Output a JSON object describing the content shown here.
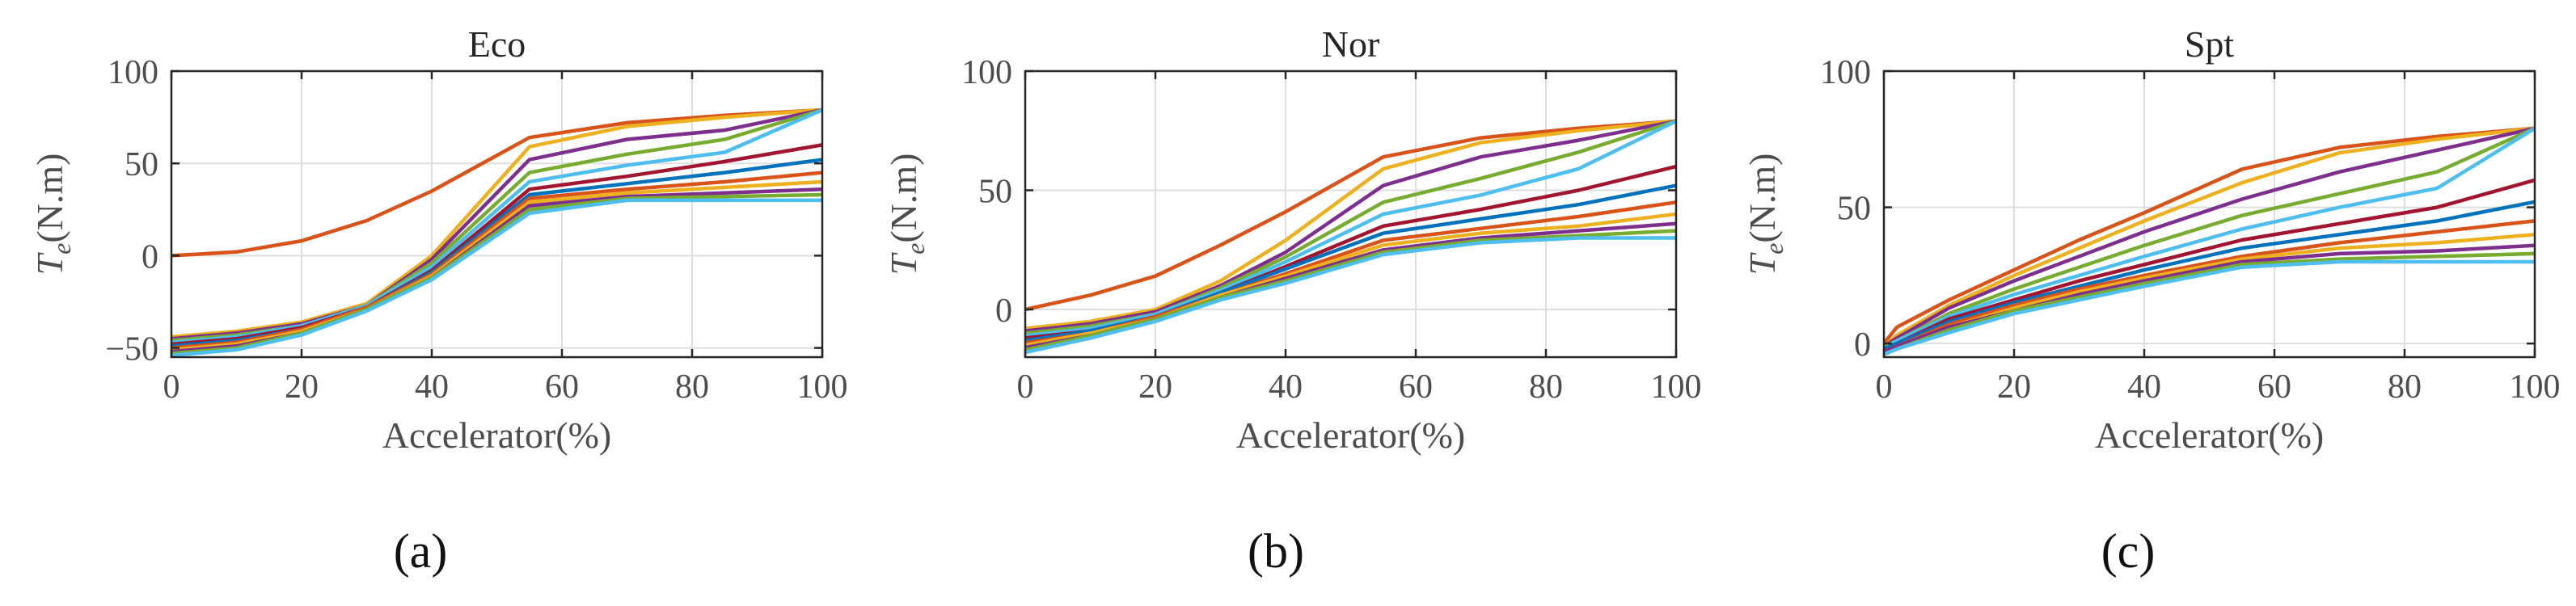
{
  "figure": {
    "panel_labels": [
      "(a)",
      "(b)",
      "(c)"
    ]
  },
  "chart_data": [
    {
      "type": "line",
      "title": "Eco",
      "xlabel": "Accelerator(%)",
      "ylabel_main": "T",
      "ylabel_sub": "e",
      "ylabel_unit": "(N.m)",
      "xlim": [
        0,
        100
      ],
      "ylim": [
        -55,
        100
      ],
      "xticks": [
        0,
        20,
        40,
        60,
        80,
        100
      ],
      "yticks": [
        -50,
        0,
        50,
        100
      ],
      "ytick_labels": [
        "−50",
        "0",
        "50",
        "100"
      ],
      "grid": true,
      "x": [
        0,
        10,
        20,
        30,
        40,
        55,
        70,
        85,
        100
      ],
      "series": [
        {
          "color": "#D95319",
          "values": [
            0,
            2,
            8,
            19,
            35,
            64,
            72,
            76,
            79
          ]
        },
        {
          "color": "#EDB120",
          "values": [
            -44,
            -41,
            -36,
            -26,
            0,
            59,
            70,
            75,
            79
          ]
        },
        {
          "color": "#7E2F8E",
          "values": [
            -45,
            -42,
            -37,
            -27,
            -2,
            52,
            63,
            68,
            79
          ]
        },
        {
          "color": "#77AC30",
          "values": [
            -46,
            -43,
            -38,
            -27,
            -4,
            45,
            55,
            63,
            79
          ]
        },
        {
          "color": "#4DBEEE",
          "values": [
            -47,
            -44,
            -38,
            -27,
            -6,
            40,
            49,
            56,
            79
          ]
        },
        {
          "color": "#A2142F",
          "values": [
            -48,
            -45,
            -39,
            -28,
            -8,
            36,
            43,
            51,
            60
          ]
        },
        {
          "color": "#0072BD",
          "values": [
            -49,
            -46,
            -40,
            -28,
            -9,
            33,
            39,
            45,
            52
          ]
        },
        {
          "color": "#D95319",
          "values": [
            -50,
            -47,
            -40,
            -28,
            -10,
            31,
            36,
            40,
            45
          ]
        },
        {
          "color": "#EDB120",
          "values": [
            -51,
            -48,
            -41,
            -29,
            -11,
            29,
            34,
            37,
            40
          ]
        },
        {
          "color": "#7E2F8E",
          "values": [
            -52,
            -49,
            -42,
            -29,
            -12,
            27,
            32,
            34,
            36
          ]
        },
        {
          "color": "#77AC30",
          "values": [
            -53,
            -50,
            -42,
            -29,
            -12,
            25,
            31,
            32,
            33
          ]
        },
        {
          "color": "#4DBEEE",
          "values": [
            -54,
            -51,
            -43,
            -30,
            -13,
            23,
            30,
            30,
            30
          ]
        }
      ]
    },
    {
      "type": "line",
      "title": "Nor",
      "xlabel": "Accelerator(%)",
      "ylabel_main": "T",
      "ylabel_sub": "e",
      "ylabel_unit": "(N.m)",
      "xlim": [
        0,
        100
      ],
      "ylim": [
        -20,
        100
      ],
      "xticks": [
        0,
        20,
        40,
        60,
        80,
        100
      ],
      "yticks": [
        0,
        50,
        100
      ],
      "ytick_labels": [
        "0",
        "50",
        "100"
      ],
      "grid": true,
      "x": [
        0,
        10,
        20,
        30,
        40,
        55,
        70,
        85,
        100
      ],
      "series": [
        {
          "color": "#D95319",
          "values": [
            0,
            6,
            14,
            27,
            41,
            64,
            72,
            76,
            79
          ]
        },
        {
          "color": "#EDB120",
          "values": [
            -8,
            -5,
            0,
            12,
            29,
            59,
            70,
            75,
            79
          ]
        },
        {
          "color": "#7E2F8E",
          "values": [
            -9,
            -6,
            -1,
            10,
            24,
            52,
            64,
            71,
            79
          ]
        },
        {
          "color": "#77AC30",
          "values": [
            -10,
            -7,
            -2,
            9,
            22,
            45,
            55,
            66,
            79
          ]
        },
        {
          "color": "#4DBEEE",
          "values": [
            -11,
            -8,
            -2,
            8,
            20,
            40,
            48,
            59,
            79
          ]
        },
        {
          "color": "#A2142F",
          "values": [
            -12,
            -9,
            -3,
            7,
            18,
            35,
            42,
            50,
            60
          ]
        },
        {
          "color": "#0072BD",
          "values": [
            -13,
            -9,
            -3,
            7,
            17,
            32,
            38,
            44,
            52
          ]
        },
        {
          "color": "#D95319",
          "values": [
            -14,
            -10,
            -3,
            6,
            15,
            29,
            34,
            39,
            45
          ]
        },
        {
          "color": "#EDB120",
          "values": [
            -15,
            -10,
            -4,
            6,
            14,
            27,
            32,
            35,
            40
          ]
        },
        {
          "color": "#7E2F8E",
          "values": [
            -16,
            -11,
            -4,
            5,
            13,
            25,
            30,
            33,
            36
          ]
        },
        {
          "color": "#77AC30",
          "values": [
            -17,
            -11,
            -4,
            5,
            12,
            24,
            29,
            31,
            33
          ]
        },
        {
          "color": "#4DBEEE",
          "values": [
            -18,
            -12,
            -5,
            4,
            11,
            23,
            28,
            30,
            30
          ]
        }
      ]
    },
    {
      "type": "line",
      "title": "Spt",
      "xlabel": "Accelerator(%)",
      "ylabel_main": "T",
      "ylabel_sub": "e",
      "ylabel_unit": "(N.m)",
      "xlim": [
        0,
        100
      ],
      "ylim": [
        -5,
        100
      ],
      "xticks": [
        0,
        20,
        40,
        60,
        80,
        100
      ],
      "yticks": [
        0,
        50,
        100
      ],
      "ytick_labels": [
        "0",
        "50",
        "100"
      ],
      "grid": true,
      "x": [
        0,
        2,
        10,
        20,
        30,
        40,
        55,
        70,
        85,
        100
      ],
      "series": [
        {
          "color": "#D95319",
          "values": [
            0,
            6,
            16,
            27,
            38,
            48,
            64,
            72,
            76,
            79
          ]
        },
        {
          "color": "#EDB120",
          "values": [
            -1,
            3,
            14,
            25,
            35,
            45,
            59,
            70,
            75,
            79
          ]
        },
        {
          "color": "#7E2F8E",
          "values": [
            -1,
            2,
            13,
            23,
            32,
            41,
            53,
            63,
            71,
            79
          ]
        },
        {
          "color": "#77AC30",
          "values": [
            -1,
            1,
            11,
            20,
            28,
            36,
            47,
            55,
            63,
            79
          ]
        },
        {
          "color": "#4DBEEE",
          "values": [
            -2,
            1,
            10,
            18,
            25,
            32,
            42,
            50,
            57,
            79
          ]
        },
        {
          "color": "#A2142F",
          "values": [
            -2,
            0,
            9,
            16,
            23,
            29,
            38,
            44,
            50,
            60
          ]
        },
        {
          "color": "#0072BD",
          "values": [
            -2,
            0,
            8,
            15,
            21,
            27,
            35,
            40,
            45,
            52
          ]
        },
        {
          "color": "#D95319",
          "values": [
            -3,
            -1,
            7,
            14,
            20,
            25,
            32,
            37,
            41,
            45
          ]
        },
        {
          "color": "#EDB120",
          "values": [
            -3,
            -1,
            6,
            13,
            19,
            24,
            31,
            35,
            37,
            40
          ]
        },
        {
          "color": "#7E2F8E",
          "values": [
            -3,
            -1,
            6,
            12,
            18,
            23,
            30,
            33,
            34,
            36
          ]
        },
        {
          "color": "#77AC30",
          "values": [
            -4,
            -2,
            5,
            12,
            17,
            22,
            29,
            31,
            32,
            33
          ]
        },
        {
          "color": "#4DBEEE",
          "values": [
            -4,
            -2,
            4,
            11,
            16,
            21,
            28,
            30,
            30,
            30
          ]
        }
      ]
    }
  ]
}
